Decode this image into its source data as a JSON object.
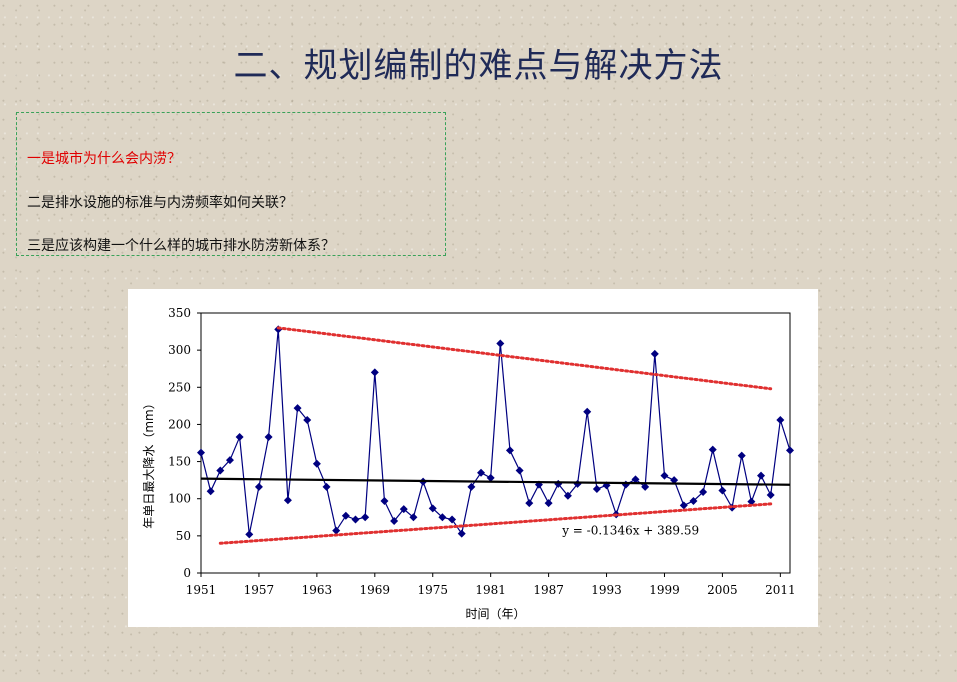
{
  "slide": {
    "title": "二、规划编制的难点与解决方法",
    "questions": [
      "一是城市为什么会内涝？",
      "二是排水设施的标准与内涝频率如何关联？",
      "三是应该构建一个什么样的城市排水防涝新体系？"
    ]
  },
  "chart_data": {
    "type": "line",
    "xlabel": "时间（年）",
    "ylabel": "年单日最大降水（mm）",
    "xlim": [
      1951,
      2012
    ],
    "ylim": [
      0,
      350
    ],
    "x_ticks": [
      "1951",
      "1957",
      "1963",
      "1969",
      "1975",
      "1981",
      "1987",
      "1993",
      "1999",
      "2005",
      "2011"
    ],
    "y_ticks": [
      "0",
      "50",
      "100",
      "150",
      "200",
      "250",
      "300",
      "350"
    ],
    "grid": false,
    "series": [
      {
        "color": "#000080",
        "marker": "diamond",
        "x": [
          1951,
          1952,
          1953,
          1954,
          1955,
          1956,
          1957,
          1958,
          1959,
          1960,
          1961,
          1962,
          1963,
          1964,
          1965,
          1966,
          1967,
          1968,
          1969,
          1970,
          1971,
          1972,
          1973,
          1974,
          1975,
          1976,
          1977,
          1978,
          1979,
          1980,
          1981,
          1982,
          1983,
          1984,
          1985,
          1986,
          1987,
          1988,
          1989,
          1990,
          1991,
          1992,
          1993,
          1994,
          1995,
          1996,
          1997,
          1998,
          1999,
          2000,
          2001,
          2002,
          2003,
          2004,
          2005,
          2006,
          2007,
          2008,
          2009,
          2010,
          2011,
          2012
        ],
        "values": [
          162,
          110,
          138,
          152,
          183,
          52,
          116,
          183,
          328,
          98,
          222,
          206,
          147,
          116,
          57,
          77,
          72,
          75,
          270,
          97,
          70,
          86,
          75,
          123,
          87,
          75,
          72,
          53,
          116,
          135,
          128,
          309,
          165,
          138,
          94,
          119,
          94,
          120,
          104,
          120,
          217,
          113,
          118,
          79,
          119,
          126,
          116,
          295,
          131,
          125,
          91,
          97,
          109,
          166,
          111,
          88,
          158,
          96,
          131,
          105,
          206,
          165
        ]
      },
      {
        "name": "",
        "style": "trend",
        "color": "#000000",
        "equation": "y = -0.1346x + 389.59",
        "x": [
          1951,
          2012
        ],
        "values": [
          127.0,
          118.8
        ]
      },
      {
        "style": "upper-envelope",
        "color": "#e03030",
        "x": [
          1959,
          2010
        ],
        "values": [
          330,
          248
        ]
      },
      {
        "style": "lower-envelope",
        "color": "#e03030",
        "x": [
          1953,
          2010
        ],
        "values": [
          40,
          93
        ]
      }
    ]
  }
}
